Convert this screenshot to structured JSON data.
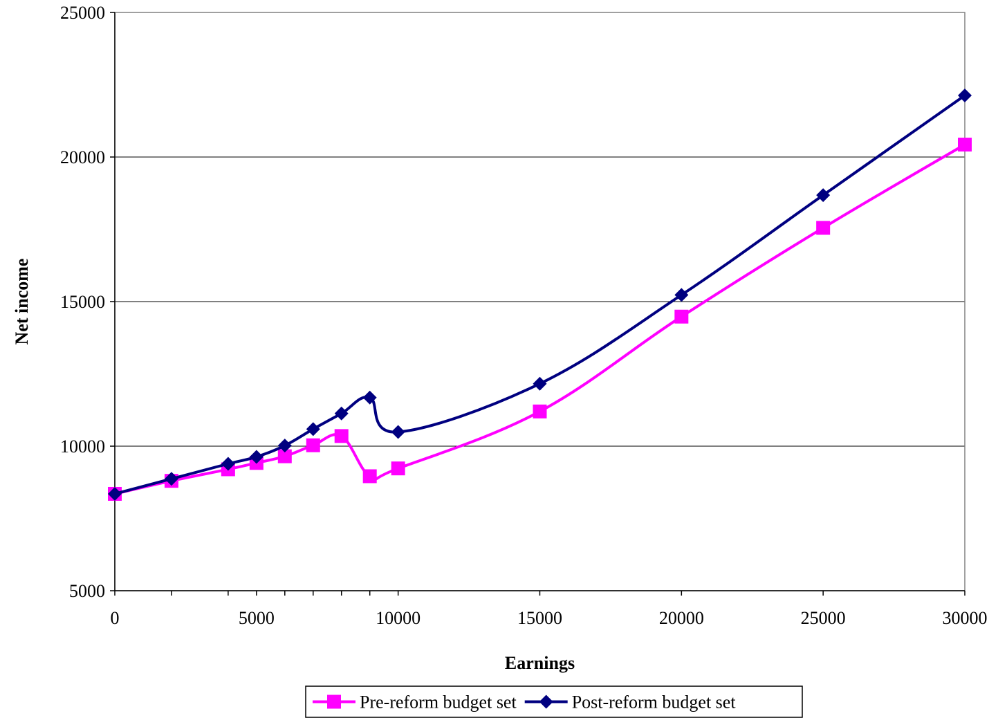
{
  "chart_data": {
    "type": "line",
    "xlabel": "Earnings",
    "ylabel": "Net income",
    "xlim": [
      0,
      30000
    ],
    "ylim": [
      5000,
      25000
    ],
    "x_ticks": [
      "0",
      "5000",
      "10000",
      "15000",
      "20000",
      "25000",
      "30000"
    ],
    "y_ticks": [
      "5000",
      "10000",
      "15000",
      "20000",
      "25000"
    ],
    "grid": "horizontal",
    "legend_position": "bottom",
    "x": [
      0,
      2000,
      4000,
      5000,
      6000,
      7000,
      8000,
      9000,
      10000,
      15000,
      20000,
      25000,
      30000
    ],
    "series": [
      {
        "name": "Pre-reform budget set",
        "color": "#ff00ff",
        "marker": "square",
        "values": [
          8350,
          8800,
          9200,
          9420,
          9650,
          10030,
          10350,
          8960,
          9230,
          11200,
          14480,
          17550,
          20430
        ]
      },
      {
        "name": "Post-reform budget set",
        "color": "#000080",
        "marker": "diamond",
        "values": [
          8350,
          8870,
          9390,
          9630,
          10020,
          10590,
          11130,
          11680,
          10490,
          12160,
          15230,
          18680,
          22130
        ]
      }
    ]
  }
}
